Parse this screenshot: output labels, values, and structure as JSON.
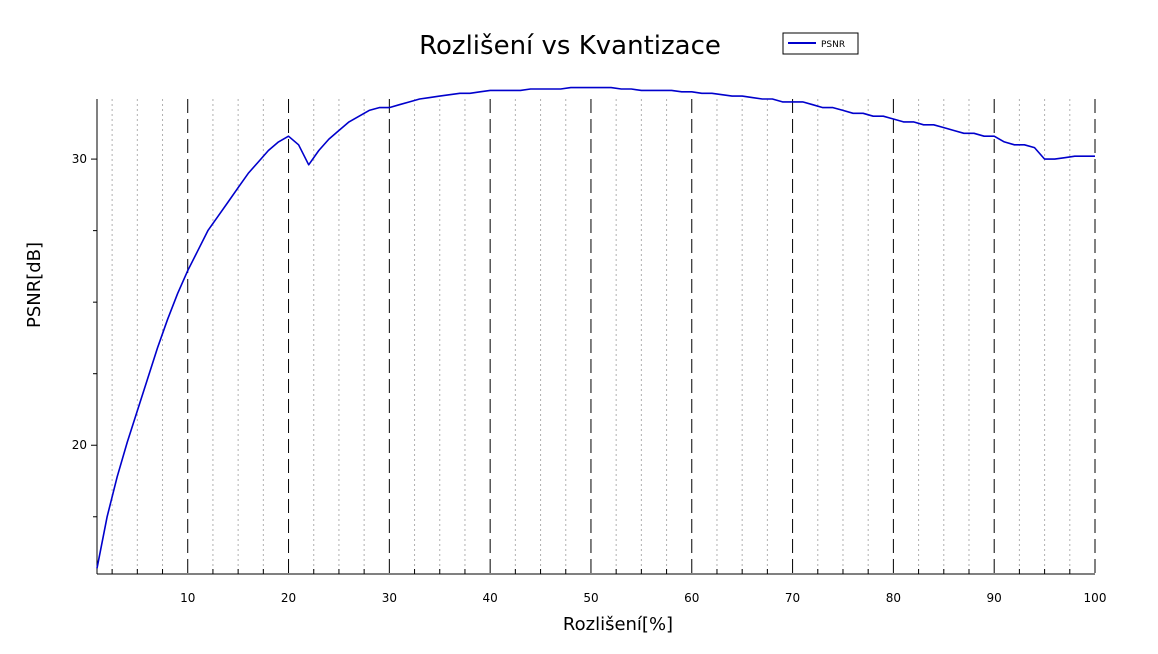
{
  "chart_data": {
    "type": "line",
    "title": "Rozlišení vs Kvantizace",
    "xlabel": "Rozlišení[%]",
    "ylabel": "PSNR[dB]",
    "xlim": [
      1,
      100
    ],
    "ylim": [
      15.5,
      32.1
    ],
    "xticks": [
      10,
      20,
      30,
      40,
      50,
      60,
      70,
      80,
      90,
      100
    ],
    "xtick_labels": [
      "10",
      "20",
      "30",
      "40",
      "50",
      "60",
      "70",
      "80",
      "90",
      "100"
    ],
    "yticks": [
      20,
      30
    ],
    "ytick_labels": [
      "20",
      "30"
    ],
    "grid": "major dashed, minor dotted (x only)",
    "legend": "top-right",
    "series": [
      {
        "name": "PSNR",
        "color": "#0000cc",
        "x": [
          1,
          2,
          3,
          4,
          5,
          6,
          7,
          8,
          9,
          10,
          11,
          12,
          13,
          14,
          15,
          16,
          17,
          18,
          19,
          20,
          21,
          22,
          23,
          24,
          25,
          26,
          27,
          28,
          29,
          30,
          31,
          32,
          33,
          34,
          35,
          36,
          37,
          38,
          39,
          40,
          41,
          42,
          43,
          44,
          45,
          46,
          47,
          48,
          49,
          50,
          51,
          52,
          53,
          54,
          55,
          56,
          57,
          58,
          59,
          60,
          61,
          62,
          63,
          64,
          65,
          66,
          67,
          68,
          69,
          70,
          71,
          72,
          73,
          74,
          75,
          76,
          77,
          78,
          79,
          80,
          81,
          82,
          83,
          84,
          85,
          86,
          87,
          88,
          89,
          90,
          91,
          92,
          93,
          94,
          95,
          96,
          97,
          98,
          99,
          100
        ],
        "values": [
          15.7,
          17.5,
          18.9,
          20.1,
          21.2,
          22.3,
          23.4,
          24.4,
          25.3,
          26.1,
          26.8,
          27.5,
          28.0,
          28.5,
          29.0,
          29.5,
          29.9,
          30.3,
          30.6,
          30.8,
          30.5,
          29.8,
          30.3,
          30.7,
          31.0,
          31.3,
          31.5,
          31.7,
          31.8,
          31.8,
          31.9,
          32.0,
          32.1,
          32.15,
          32.2,
          32.25,
          32.3,
          32.3,
          32.35,
          32.4,
          32.4,
          32.4,
          32.4,
          32.45,
          32.45,
          32.45,
          32.45,
          32.5,
          32.5,
          32.5,
          32.5,
          32.5,
          32.45,
          32.45,
          32.4,
          32.4,
          32.4,
          32.4,
          32.35,
          32.35,
          32.3,
          32.3,
          32.25,
          32.2,
          32.2,
          32.15,
          32.1,
          32.1,
          32.0,
          32.0,
          32.0,
          31.9,
          31.8,
          31.8,
          31.7,
          31.6,
          31.6,
          31.5,
          31.5,
          31.4,
          31.3,
          31.3,
          31.2,
          31.2,
          31.1,
          31.0,
          30.9,
          30.9,
          30.8,
          30.8,
          30.6,
          30.5,
          30.5,
          30.4,
          30.0,
          30.0,
          30.05,
          30.1,
          30.1,
          30.1
        ]
      }
    ]
  }
}
